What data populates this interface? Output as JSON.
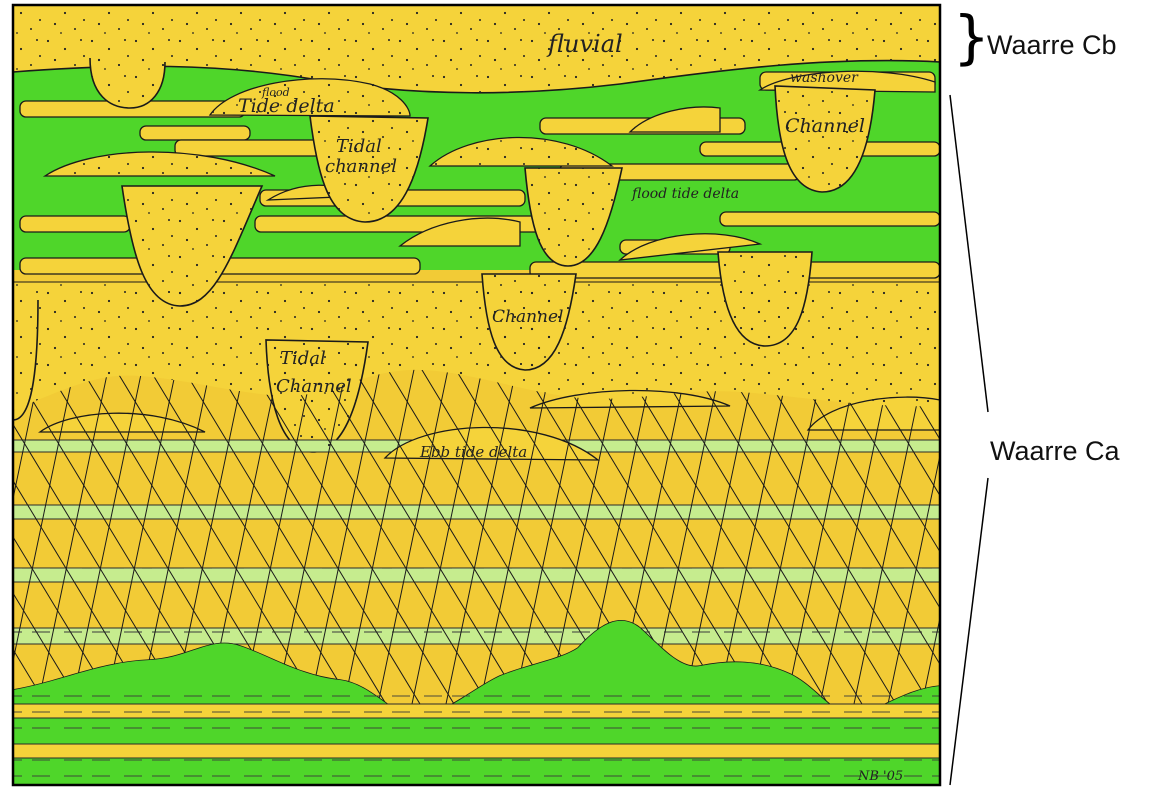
{
  "colors": {
    "sand": "#f5d33a",
    "sand_dark": "#edb52a",
    "mud": "#4fd62a",
    "mud_light": "#c6ec8e",
    "outline": "#1a1a1a",
    "paper": "#ffffff"
  },
  "labels": {
    "fluvial": "fluvial",
    "washover": "washover",
    "channel_top_right": "Channel",
    "flood_word": "flood",
    "tide_delta_upper": "Tide delta",
    "tidal_upper_1": "Tidal",
    "tidal_upper_2": "channel",
    "flood_tide_delta_right": "flood tide delta",
    "channel_mid": "Channel",
    "tidal_lower_1": "Tidal",
    "tidal_lower_2": "Channel",
    "ebb_tide_delta": "Ebb tide delta",
    "signature": "NB '05"
  },
  "units": {
    "upper": "Waarre Cb",
    "lower": "Waarre Ca"
  }
}
